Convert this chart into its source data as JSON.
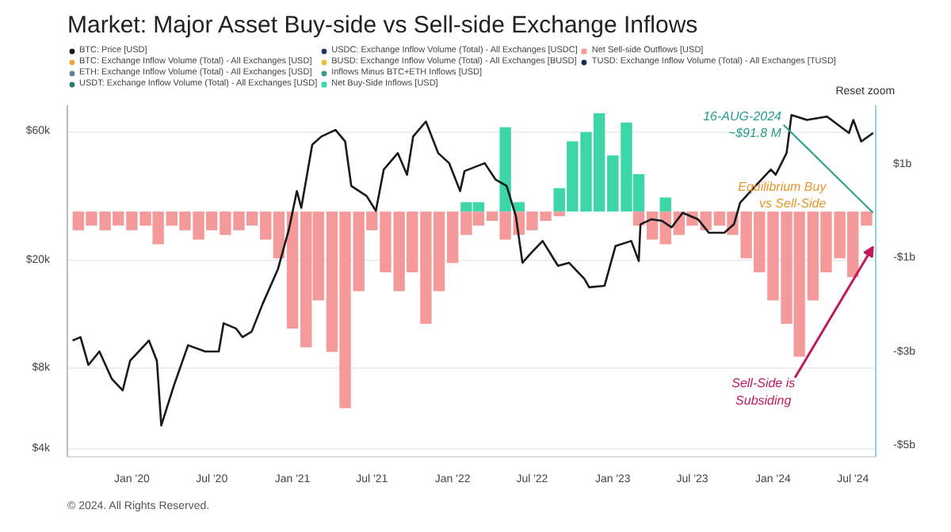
{
  "chart_data": {
    "type": "line",
    "title": "Market: Major Asset Buy-side vs Sell-side Exchange Inflows",
    "xlim": [
      "2019-08-07",
      "2024-08-22"
    ],
    "xticks": [
      {
        "value": "2020-01-01",
        "label": "Jan '20"
      },
      {
        "value": "2020-07-01",
        "label": "Jul '20"
      },
      {
        "value": "2021-01-01",
        "label": "Jan '21"
      },
      {
        "value": "2021-07-01",
        "label": "Jul '21"
      },
      {
        "value": "2022-01-01",
        "label": "Jan '22"
      },
      {
        "value": "2022-07-01",
        "label": "Jul '22"
      },
      {
        "value": "2023-01-01",
        "label": "Jan '23"
      },
      {
        "value": "2023-07-01",
        "label": "Jul '23"
      },
      {
        "value": "2024-01-01",
        "label": "Jan '24"
      },
      {
        "value": "2024-07-01",
        "label": "Jul '24"
      }
    ],
    "ylim": [
      3750,
      75000
    ],
    "yticks": [
      {
        "value": 4000,
        "label": "$4k"
      },
      {
        "value": 8000,
        "label": "$8k"
      },
      {
        "value": 20000,
        "label": "$20k"
      },
      {
        "value": 60000,
        "label": "$60k"
      }
    ],
    "y2lim": [
      -5.24,
      2.27
    ],
    "y2ticks": [
      {
        "value": 1,
        "label": "$1b"
      },
      {
        "value": -1,
        "label": "-$1b"
      },
      {
        "value": -3,
        "label": "-$3b"
      },
      {
        "value": -5,
        "label": "-$5b"
      }
    ],
    "log": "y",
    "grid": "y",
    "legend": "top",
    "annotations": [
      {
        "text": "16-AUG-2024\n~$91.8 M",
        "x": "2024-08-16",
        "y": 30000
      },
      "Equilibrium Buy\nvs Sell-Side",
      "Sell-Side is\nSubsiding",
      "Reset zoom",
      "© 2024. All Rights Reserved."
    ],
    "series": [
      {
        "name": "BTC: Price [USD]",
        "axis": "y",
        "color": "#1a1a1a",
        "x": [
          "2019-08-19",
          "2019-09-06",
          "2019-09-24",
          "2019-10-19",
          "2019-11-16",
          "2019-12-11",
          "2019-12-28",
          "2020-02-09",
          "2020-02-27",
          "2020-03-08",
          "2020-04-06",
          "2020-05-08",
          "2020-06-16",
          "2020-07-17",
          "2020-07-28",
          "2020-08-25",
          "2020-09-09",
          "2020-09-30",
          "2020-10-25",
          "2020-11-29",
          "2020-12-24",
          "2021-01-11",
          "2021-01-21",
          "2021-02-15",
          "2021-03-08",
          "2021-04-09",
          "2021-05-01",
          "2021-05-15",
          "2021-06-19",
          "2021-07-10",
          "2021-07-28",
          "2021-08-29",
          "2021-09-19",
          "2021-10-03",
          "2021-11-01",
          "2021-11-29",
          "2021-12-24",
          "2022-01-18",
          "2022-01-28",
          "2022-03-15",
          "2022-04-09",
          "2022-05-04",
          "2022-05-25",
          "2022-06-09",
          "2022-06-30",
          "2022-07-25",
          "2022-08-29",
          "2022-09-23",
          "2022-10-28",
          "2022-11-08",
          "2022-12-13",
          "2023-01-07",
          "2023-02-12",
          "2023-03-01",
          "2023-03-05",
          "2023-03-30",
          "2023-04-23",
          "2023-05-15",
          "2023-06-09",
          "2023-07-14",
          "2023-08-08",
          "2023-09-12",
          "2023-10-04",
          "2023-10-18",
          "2023-11-22",
          "2023-12-27",
          "2024-01-07",
          "2024-02-01",
          "2024-02-12",
          "2024-03-18",
          "2024-05-03",
          "2024-06-22",
          "2024-07-02",
          "2024-07-20",
          "2024-08-16"
        ],
        "values": [
          10100,
          10400,
          8200,
          9200,
          7300,
          6600,
          8500,
          10100,
          8500,
          4900,
          6900,
          9700,
          9200,
          9200,
          11700,
          11200,
          10400,
          10900,
          13800,
          18600,
          26100,
          36100,
          31300,
          53600,
          57500,
          60800,
          55100,
          37700,
          34600,
          30500,
          43400,
          49900,
          41500,
          57500,
          65300,
          49900,
          45800,
          36100,
          42800,
          45800,
          39800,
          37700,
          29200,
          19600,
          21400,
          23600,
          19100,
          19600,
          17100,
          15900,
          16100,
          22600,
          23600,
          19900,
          27200,
          28400,
          28000,
          26500,
          30000,
          28400,
          25300,
          25300,
          27200,
          32700,
          37700,
          43400,
          41500,
          50000,
          69000,
          66200,
          68100,
          59200,
          66200,
          55100,
          59200
        ]
      },
      {
        "name": "BTC: Exchange Inflow Volume (Total) - All Exchanges [USD]",
        "type": "line",
        "color": "#f2a33a"
      },
      {
        "name": "ETH: Exchange Inflow Volume (Total) - All Exchanges [USD]",
        "type": "line",
        "color": "#5b8597"
      },
      {
        "name": "USDT: Exchange Inflow Volume (Total) - All Exchanges [USD]",
        "type": "line",
        "color": "#2e7d72"
      },
      {
        "name": "USDC: Exchange Inflow Volume (Total) - All Exchanges [USDC]",
        "type": "line",
        "color": "#1f3a5f"
      },
      {
        "name": "BUSD: Exchange Inflow Volume (Total) - All Exchanges [BUSD]",
        "type": "line",
        "color": "#e8c040"
      },
      {
        "name": "Inflows Minus BTC+ETH Inflows [USD]",
        "type": "line",
        "color": "#3a9a8a"
      },
      {
        "name": "Net Buy-Side Inflows [USD]",
        "type": "bar",
        "axis": "y2",
        "color": "#3dd6a8",
        "x": [
          "2022-02-01",
          "2022-03-01",
          "2022-05-01",
          "2022-06-01",
          "2022-09-01",
          "2022-10-01",
          "2022-11-01",
          "2022-12-01",
          "2023-01-01",
          "2023-02-01",
          "2023-03-01",
          "2023-05-01"
        ],
        "values": [
          0.2,
          0.2,
          1.8,
          0.2,
          0.5,
          1.5,
          1.7,
          2.1,
          1.2,
          1.9,
          0.8,
          0.3
        ]
      },
      {
        "name": "Net Sell-side Outflows [USD]",
        "type": "bar",
        "axis": "y2",
        "color": "#f49a9a",
        "x": [
          "2019-09-01",
          "2019-10-01",
          "2019-11-01",
          "2019-12-01",
          "2020-01-01",
          "2020-02-01",
          "2020-03-01",
          "2020-04-01",
          "2020-05-01",
          "2020-06-01",
          "2020-07-01",
          "2020-08-01",
          "2020-09-01",
          "2020-10-01",
          "2020-11-01",
          "2020-12-01",
          "2021-01-01",
          "2021-02-01",
          "2021-03-01",
          "2021-04-01",
          "2021-05-01",
          "2021-06-01",
          "2021-07-01",
          "2021-08-01",
          "2021-09-01",
          "2021-10-01",
          "2021-11-01",
          "2021-12-01",
          "2022-01-01",
          "2022-02-01",
          "2022-03-01",
          "2022-04-01",
          "2022-05-01",
          "2022-06-01",
          "2022-07-01",
          "2022-08-01",
          "2022-09-01",
          "2023-03-01",
          "2023-04-01",
          "2023-05-01",
          "2023-06-01",
          "2023-07-01",
          "2023-08-01",
          "2023-09-01",
          "2023-10-01",
          "2023-11-01",
          "2023-12-01",
          "2024-01-01",
          "2024-02-01",
          "2024-03-01",
          "2024-04-01",
          "2024-05-01",
          "2024-06-01",
          "2024-07-01",
          "2024-08-01"
        ],
        "values": [
          -0.4,
          -0.3,
          -0.4,
          -0.3,
          -0.4,
          -0.3,
          -0.7,
          -0.3,
          -0.4,
          -0.6,
          -0.4,
          -0.5,
          -0.4,
          -0.3,
          -0.6,
          -1.0,
          -2.5,
          -2.9,
          -1.9,
          -3.0,
          -4.2,
          -1.7,
          -0.4,
          -1.3,
          -1.7,
          -1.3,
          -2.4,
          -1.7,
          -1.1,
          -0.5,
          -0.3,
          -0.2,
          -0.6,
          -0.5,
          -0.4,
          -0.2,
          -0.1,
          -0.3,
          -0.6,
          -0.7,
          -0.5,
          -0.3,
          -0.4,
          -0.3,
          -0.5,
          -1.0,
          -1.3,
          -1.9,
          -2.4,
          -3.1,
          -1.9,
          -1.3,
          -1.0,
          -1.4,
          -0.3
        ]
      },
      {
        "name": "TUSD: Exchange Inflow Volume (Total) - All Exchanges [TUSD]",
        "type": "line",
        "color": "#1a2b5a"
      }
    ]
  }
}
